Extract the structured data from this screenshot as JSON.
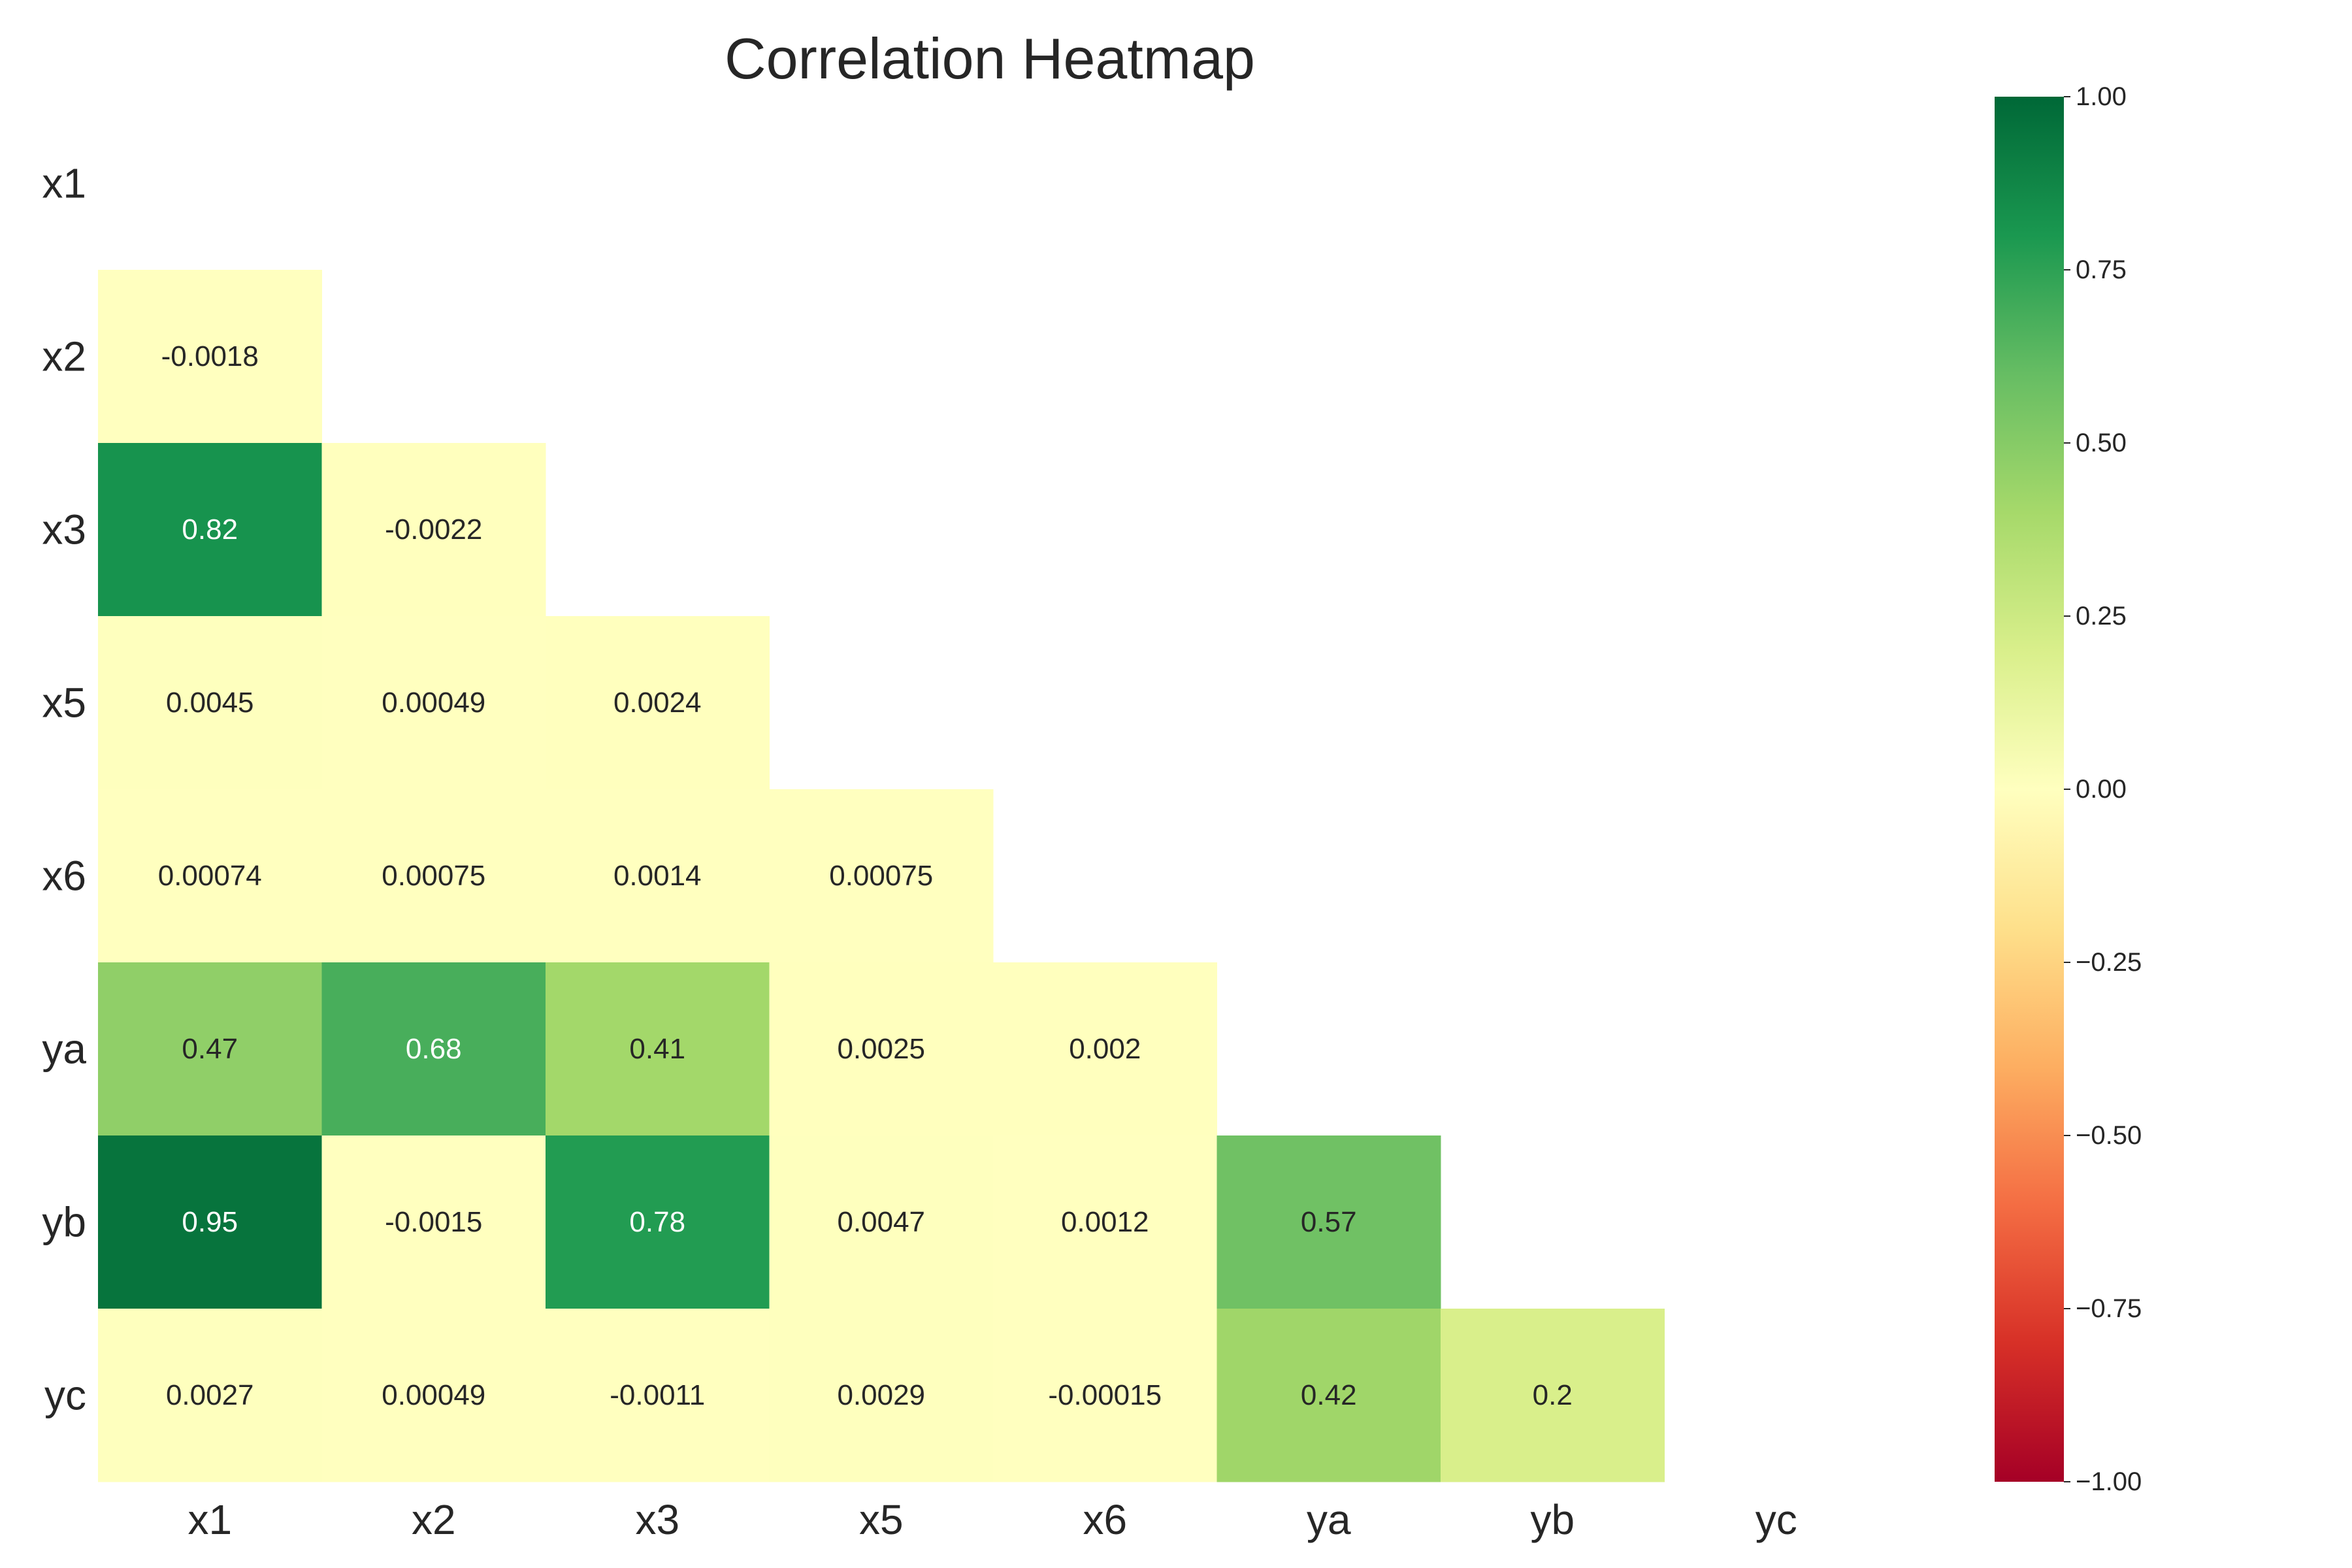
{
  "chart_data": {
    "type": "heatmap",
    "title": "Correlation Heatmap",
    "xlabel": "",
    "ylabel": "",
    "variables": [
      "x1",
      "x2",
      "x3",
      "x5",
      "x6",
      "ya",
      "yb",
      "yc"
    ],
    "mask": "upper-triangle-including-diagonal",
    "matrix_lower": [
      [],
      [
        "-0.0018"
      ],
      [
        "0.82",
        "-0.0022"
      ],
      [
        "0.0045",
        "0.00049",
        "0.0024"
      ],
      [
        "0.00074",
        "0.00075",
        "0.0014",
        "0.00075"
      ],
      [
        "0.47",
        "0.68",
        "0.41",
        "0.0025",
        "0.002"
      ],
      [
        "0.95",
        "-0.0015",
        "0.78",
        "0.0047",
        "0.0012",
        "0.57"
      ],
      [
        "0.0027",
        "0.00049",
        "-0.0011",
        "0.0029",
        "-0.00015",
        "0.42",
        "0.2"
      ]
    ],
    "colormap": "RdYlGn",
    "vmin": -1.0,
    "vmax": 1.0,
    "colorbar_ticks": [
      "1.00",
      "0.75",
      "0.50",
      "0.25",
      "0.00",
      "−0.25",
      "−0.50",
      "−0.75",
      "−1.00"
    ],
    "colorbar_tick_values": [
      1.0,
      0.75,
      0.5,
      0.25,
      0.0,
      -0.25,
      -0.5,
      -0.75,
      -1.0
    ],
    "grid": false,
    "colorbar_position": "right"
  }
}
